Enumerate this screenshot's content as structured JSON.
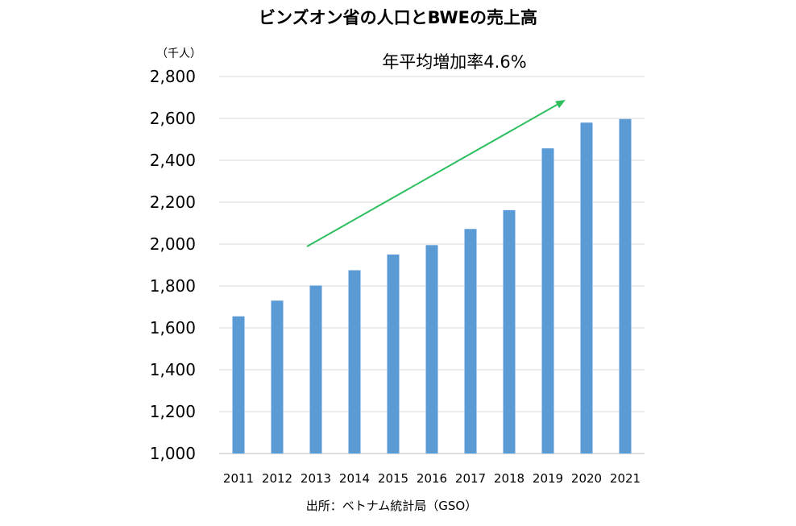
{
  "chart_data": {
    "type": "bar",
    "title": "ビンズオン省の人口とBWEの売上高",
    "unit_label": "（千人）",
    "annotation": "年平均増加率4.6%",
    "source": "出所：ベトナム統計局（GSO）",
    "categories": [
      "2011",
      "2012",
      "2013",
      "2014",
      "2015",
      "2016",
      "2017",
      "2018",
      "2019",
      "2020",
      "2021"
    ],
    "series": [
      {
        "values": [
          1655,
          1730,
          1802,
          1875,
          1950,
          1995,
          2072,
          2162,
          2457,
          2580,
          2597
        ]
      }
    ],
    "ylim": [
      1000,
      2800
    ],
    "yticks": [
      1000,
      1200,
      1400,
      1600,
      1800,
      2000,
      2200,
      2400,
      2600,
      2800
    ],
    "ytick_labels": [
      "1,000",
      "1,200",
      "1,400",
      "1,600",
      "1,800",
      "2,000",
      "2,200",
      "2,400",
      "2,600",
      "2,800"
    ],
    "grid": true,
    "legend": "none",
    "colors": {
      "bar": "#5B9BD5",
      "grid": "#D9D9D9",
      "axis": "#BFBFBF",
      "arrow": "#2DBE60"
    }
  }
}
